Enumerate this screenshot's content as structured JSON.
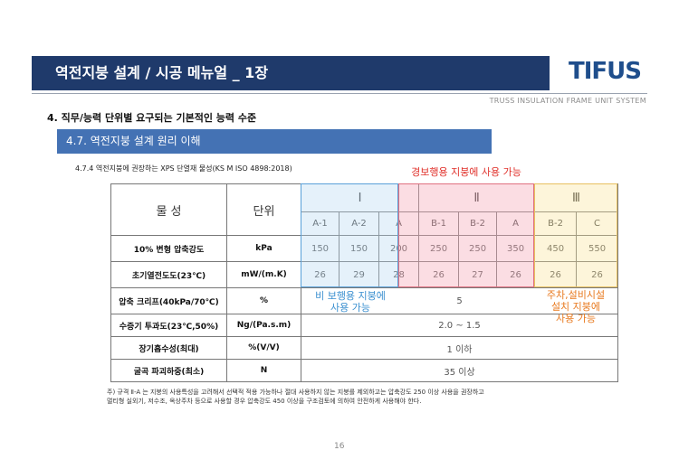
{
  "header": {
    "title": "역전지붕 설계 / 시공 메뉴얼 _  1장",
    "logo": "TIFUS",
    "tagline": "TRUSS INSULATION FRAME UNIT SYSTEM"
  },
  "section": "4. 직무/능력 단위별 요구되는 기본적인 능력 수준",
  "subsection": "4.7. 역전지붕 설계 원리 이해",
  "caption": "4.7.4 역전지붕에 권장하는 XPS 단열재 물성(KS M ISO 4898:2018)",
  "annotations": {
    "group_2": [
      "경보행용 지붕에 사용 가능"
    ],
    "group_1": [
      "비 보행용 지붕에",
      "사용 가능"
    ],
    "group_3": [
      "주차,설비시설",
      "설치 지붕에",
      "사용 가능"
    ]
  },
  "table": {
    "header": [
      [
        "물 성",
        "단위",
        "Ⅰ",
        "Ⅱ",
        "Ⅲ"
      ],
      [
        "A-1",
        "A-2",
        "A",
        "B-1",
        "B-2",
        "A",
        "B-2",
        "C"
      ]
    ],
    "rows": [
      [
        "10% 변형 압축강도",
        "kPa",
        "150",
        "150",
        "200",
        "250",
        "250",
        "350",
        "450",
        "550"
      ],
      [
        "초기열전도도(23℃)",
        "mW/(m.K)",
        "26",
        "29",
        "28",
        "26",
        "27",
        "26",
        "26",
        "26"
      ],
      [
        "압축 크리프(40kPa/70℃)",
        "%",
        "5"
      ],
      [
        "수증기 투과도(23℃,50%)",
        "Ng/(Pa.s.m)",
        "2.0 ~ 1.5"
      ],
      [
        "장기흡수성(최대)",
        "%(V/V)",
        "1 이하"
      ],
      [
        "굴곡 파괴하중(최소)",
        "N",
        "35 이상"
      ]
    ]
  },
  "footnote": [
    "주) 규격 Ⅱ-A 는  지붕의 사용특성을 고려해서 선택적 적용 가능하나 절대 사용하지 않는 지붕를 제외하고는 압축강도 250 이상 사용을 권장하고",
    "멀티형 실외기, 저수조, 옥상주차 등으로 사용할 경우 압축강도 450 이상을 구조검토에 의하여 안전하게 사용해야 한다."
  ],
  "page_number": "16"
}
